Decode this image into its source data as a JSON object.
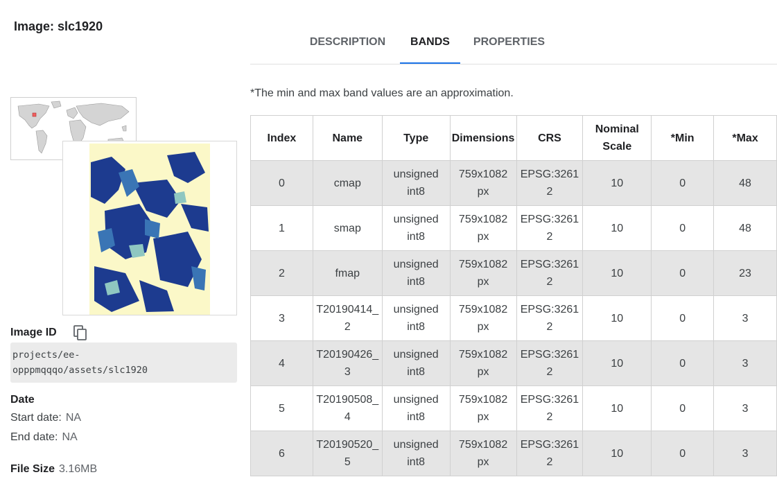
{
  "image_title": "Image: slc1920",
  "tabs": [
    {
      "label": "DESCRIPTION",
      "active": false
    },
    {
      "label": "BANDS",
      "active": true
    },
    {
      "label": "PROPERTIES",
      "active": false
    }
  ],
  "note": "*The min and max band values are an approximation.",
  "sidebar": {
    "image_id_label": "Image ID",
    "image_id_line1": "projects/ee-",
    "image_id_line2": "opppmqqqo/assets/slc1920",
    "date_label": "Date",
    "start_date_label": "Start date:",
    "start_date_value": "NA",
    "end_date_label": "End date:",
    "end_date_value": "NA",
    "file_size_label": "File Size",
    "file_size_value": "3.16MB"
  },
  "table": {
    "headers": [
      "Index",
      "Name",
      "Type",
      "Dimensions",
      "CRS",
      "Nominal Scale",
      "*Min",
      "*Max"
    ],
    "rows": [
      {
        "index": "0",
        "name": "cmap",
        "type": "unsigned int8",
        "dimensions": "759x1082 px",
        "crs": "EPSG:32612",
        "scale": "10",
        "min": "0",
        "max": "48"
      },
      {
        "index": "1",
        "name": "smap",
        "type": "unsigned int8",
        "dimensions": "759x1082 px",
        "crs": "EPSG:32612",
        "scale": "10",
        "min": "0",
        "max": "48"
      },
      {
        "index": "2",
        "name": "fmap",
        "type": "unsigned int8",
        "dimensions": "759x1082 px",
        "crs": "EPSG:32612",
        "scale": "10",
        "min": "0",
        "max": "23"
      },
      {
        "index": "3",
        "name": "T20190414_2",
        "type": "unsigned int8",
        "dimensions": "759x1082 px",
        "crs": "EPSG:32612",
        "scale": "10",
        "min": "0",
        "max": "3"
      },
      {
        "index": "4",
        "name": "T20190426_3",
        "type": "unsigned int8",
        "dimensions": "759x1082 px",
        "crs": "EPSG:32612",
        "scale": "10",
        "min": "0",
        "max": "3"
      },
      {
        "index": "5",
        "name": "T20190508_4",
        "type": "unsigned int8",
        "dimensions": "759x1082 px",
        "crs": "EPSG:32612",
        "scale": "10",
        "min": "0",
        "max": "3"
      },
      {
        "index": "6",
        "name": "T20190520_5",
        "type": "unsigned int8",
        "dimensions": "759x1082 px",
        "crs": "EPSG:32612",
        "scale": "10",
        "min": "0",
        "max": "3"
      }
    ]
  },
  "colors": {
    "accent": "#1a73e8",
    "row_shade": "#e5e5e5",
    "map_land": "#d4d4d4",
    "map_marker": "#f06060",
    "preview_background": "#fbf8c8",
    "preview_dark": "#1d3b8f",
    "preview_mid": "#3a75b5",
    "preview_light": "#8fc7c1"
  },
  "icons": {
    "copy": "copy-icon",
    "world_map": "world-map-icon"
  }
}
